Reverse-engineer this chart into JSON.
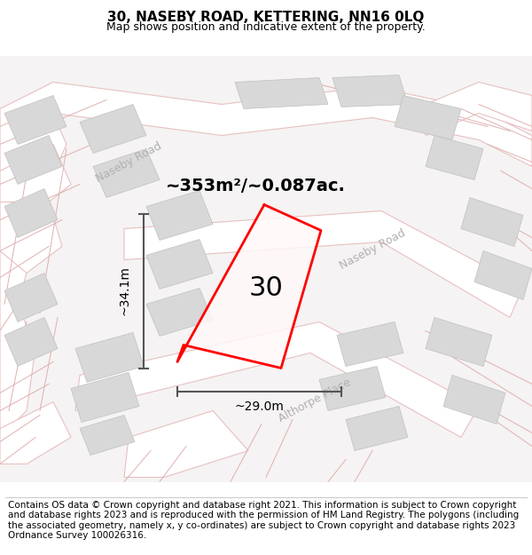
{
  "title": "30, NASEBY ROAD, KETTERING, NN16 0LQ",
  "subtitle": "Map shows position and indicative extent of the property.",
  "footer": "Contains OS data © Crown copyright and database right 2021. This information is subject to Crown copyright and database rights 2023 and is reproduced with the permission of HM Land Registry. The polygons (including the associated geometry, namely x, y co-ordinates) are subject to Crown copyright and database rights 2023 Ordnance Survey 100026316.",
  "area_label": "~353m²/~0.087ac.",
  "width_label": "~29.0m",
  "height_label": "~34.1m",
  "number_label": "30",
  "bg_color": "#f7f6f6",
  "building_color": "#d8d8d8",
  "building_edge": "#c0c0c0",
  "road_fill": "#ffffff",
  "road_edge": "#e8c0c0",
  "road_line": "#e0b0b0",
  "plot_color": "#ff0000",
  "plot_fill": "#ffffff",
  "road_label_color": "#b0b0b0",
  "dim_color": "#555555",
  "title_fontsize": 11,
  "subtitle_fontsize": 9,
  "footer_fontsize": 7.5,
  "area_fontsize": 14,
  "dim_fontsize": 10,
  "number_fontsize": 22
}
